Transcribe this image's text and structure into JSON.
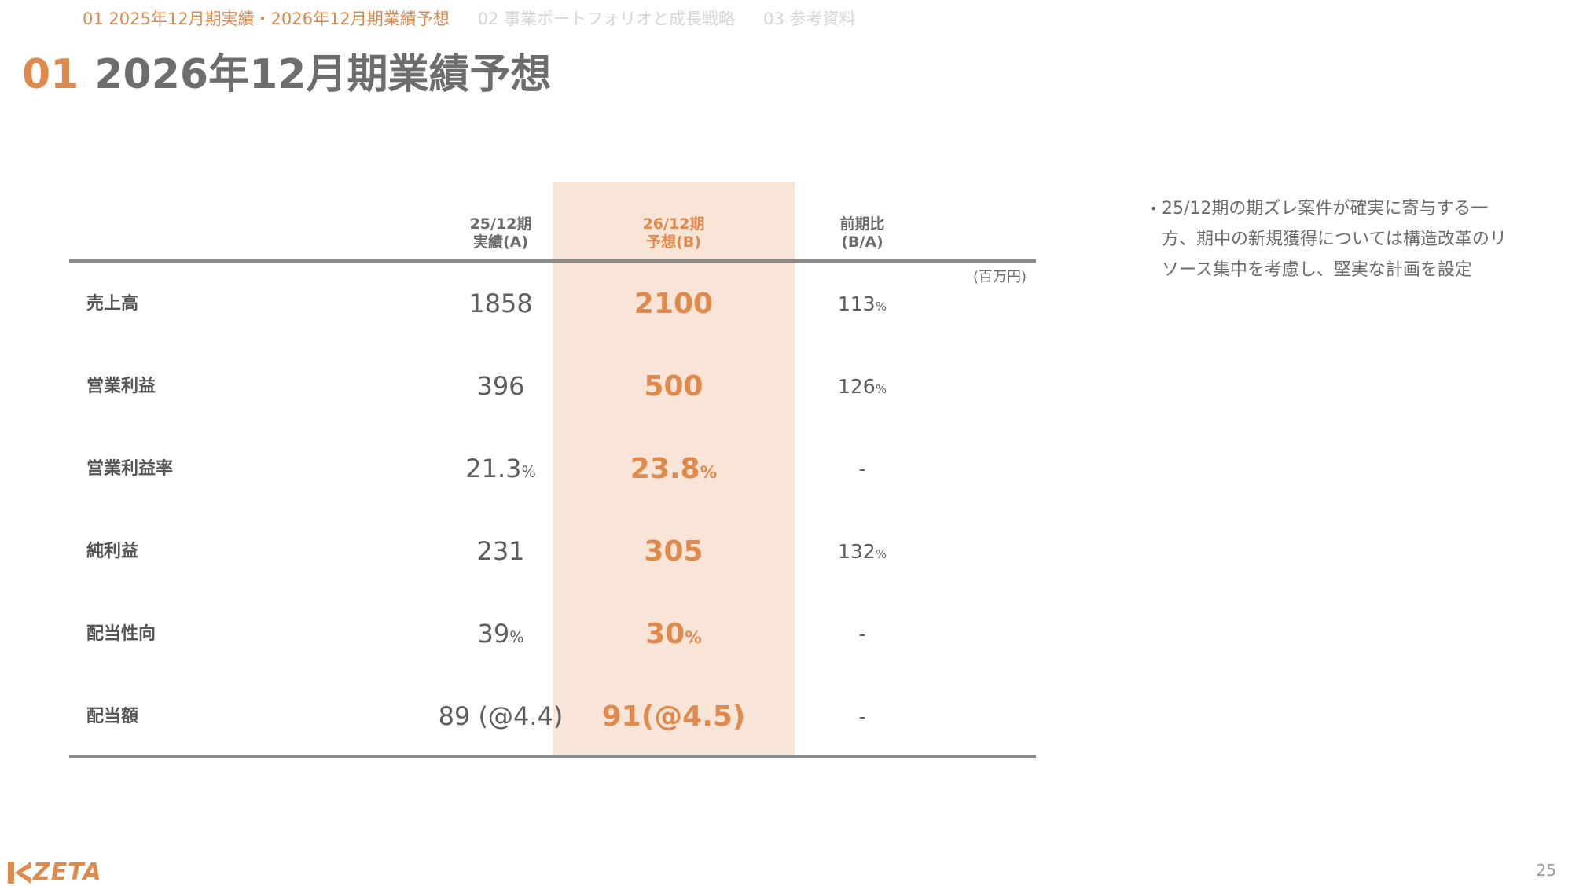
{
  "breadcrumb": [
    {
      "label": "01 2025年12月期実績・2026年12月期業績予想",
      "active": true
    },
    {
      "label": "02 事業ポートフォリオと成長戦略",
      "active": false
    },
    {
      "label": "03 参考資料",
      "active": false
    }
  ],
  "title": {
    "number": "01",
    "text": "2026年12月期業績予想"
  },
  "table": {
    "columns": [
      {
        "line1": "25/12期",
        "line2": "実績(A)"
      },
      {
        "line1": "26/12期",
        "line2": "予想(B)"
      },
      {
        "line1": "前期比",
        "line2": "(B/A)"
      }
    ],
    "unit": "(百万円)",
    "rows": [
      {
        "label": "売上高",
        "a": "1858",
        "a_pct": "",
        "b": "2100",
        "b_pct": "",
        "c": "113",
        "c_pct": "%"
      },
      {
        "label": "営業利益",
        "a": "396",
        "a_pct": "",
        "b": "500",
        "b_pct": "",
        "c": "126",
        "c_pct": "%"
      },
      {
        "label": "営業利益率",
        "a": "21.3",
        "a_pct": "%",
        "b": "23.8",
        "b_pct": "%",
        "c": "-",
        "c_pct": ""
      },
      {
        "label": "純利益",
        "a": "231",
        "a_pct": "",
        "b": "305",
        "b_pct": "",
        "c": "132",
        "c_pct": "%"
      },
      {
        "label": "配当性向",
        "a": "39",
        "a_pct": "%",
        "b": "30",
        "b_pct": "%",
        "c": "-",
        "c_pct": ""
      },
      {
        "label": "配当額",
        "a": "89 (@4.4)",
        "a_pct": "",
        "b": "91(@4.5)",
        "b_pct": "",
        "c": "-",
        "c_pct": ""
      }
    ]
  },
  "note": {
    "bullet": "•",
    "text": "25/12期の期ズレ案件が確実に寄与する一方、期中の新規獲得については構造改革のリソース集中を考慮し、堅実な計画を設定"
  },
  "footer": {
    "logo_text": "ZETA",
    "page_number": "25"
  },
  "colors": {
    "accent": "#e0894c",
    "highlight": "#f9e4d8",
    "rule": "#8a8a8a"
  }
}
